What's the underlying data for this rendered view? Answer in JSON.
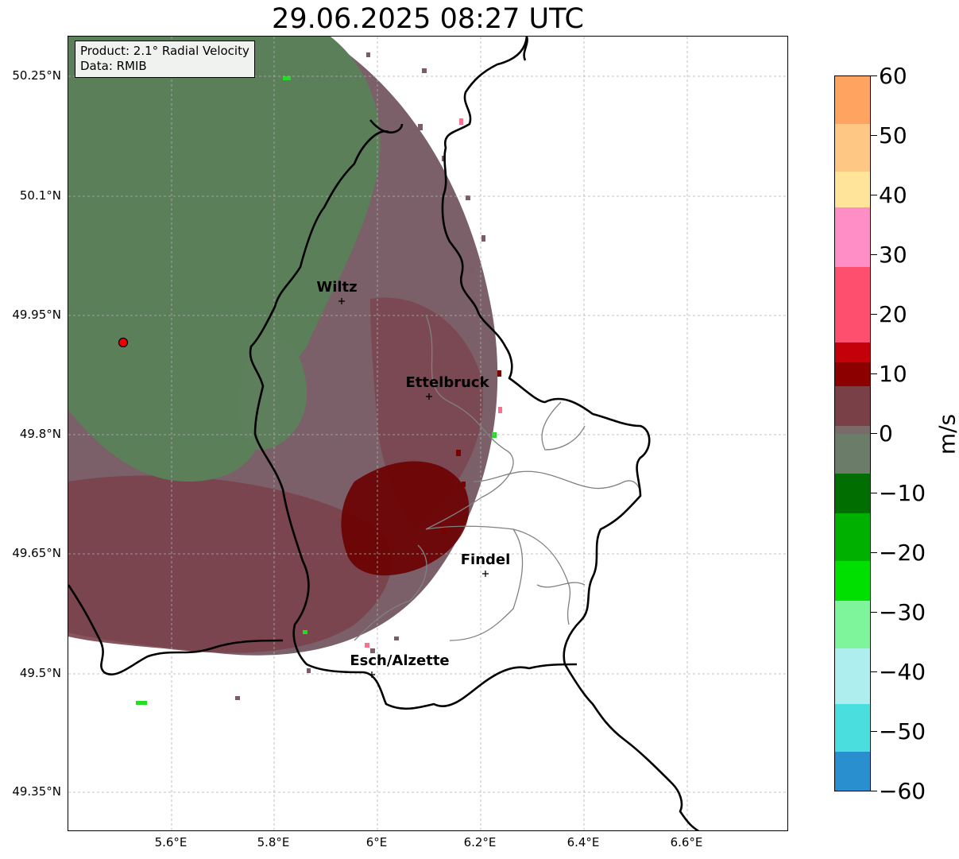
{
  "title": "29.06.2025 08:27 UTC",
  "info_box": {
    "product": "Product: 2.1° Radial Velocity",
    "data": "Data: RMIB"
  },
  "lat_ticks": [
    "50.25°N",
    "50.1°N",
    "49.95°N",
    "49.8°N",
    "49.65°N",
    "49.5°N",
    "49.35°N"
  ],
  "lon_ticks": [
    "5.6°E",
    "5.8°E",
    "6°E",
    "6.2°E",
    "6.4°E",
    "6.6°E"
  ],
  "cities": [
    {
      "name": "Wiltz"
    },
    {
      "name": "Ettelbruck"
    },
    {
      "name": "Findel"
    },
    {
      "name": "Esch/Alzette"
    }
  ],
  "colorbar": {
    "unit": "m/s",
    "ticks": [
      "60",
      "50",
      "40",
      "30",
      "20",
      "10",
      "0",
      "−10",
      "−20",
      "−30",
      "−40",
      "−50",
      "−60"
    ],
    "range": [
      -60,
      60
    ]
  },
  "colors": {
    "inbound_green": "#5a7f58",
    "outbound_mauve": "#7d5f68",
    "outbound_red": "#7a3e45",
    "strong_outbound": "#6b0000",
    "border": "#000000"
  }
}
